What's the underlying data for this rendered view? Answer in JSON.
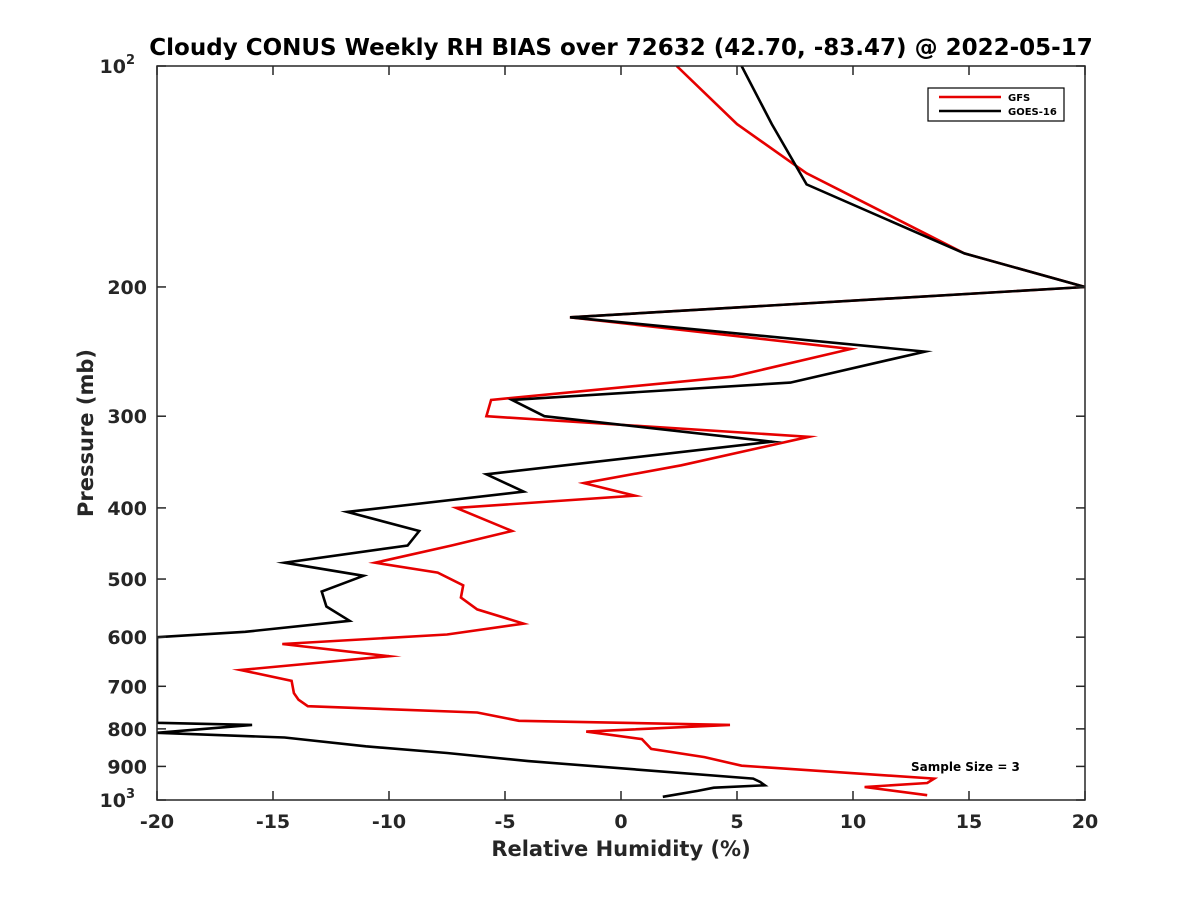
{
  "chart_data": {
    "type": "line",
    "title": "Cloudy CONUS Weekly RH BIAS over 72632 (42.70, -83.47) @ 2022-05-17",
    "xlabel": "Relative Humidity (%)",
    "ylabel": "Pressure (mb)",
    "xlim": [
      -20,
      20
    ],
    "ylim": [
      100,
      1000
    ],
    "y_scale": "log",
    "y_reversed": true,
    "grid": false,
    "legend_position": "top-right",
    "x_ticks": [
      "-20",
      "-15",
      "-10",
      "-5",
      "0",
      "5",
      "10",
      "15",
      "20"
    ],
    "y_ticks": [
      {
        "value": 100,
        "base": "10",
        "exp": "2"
      },
      {
        "value": 200,
        "label": "200"
      },
      {
        "value": 300,
        "label": "300"
      },
      {
        "value": 400,
        "label": "400"
      },
      {
        "value": 500,
        "label": "500"
      },
      {
        "value": 600,
        "label": "600"
      },
      {
        "value": 700,
        "label": "700"
      },
      {
        "value": 800,
        "label": "800"
      },
      {
        "value": 900,
        "label": "900"
      },
      {
        "value": 1000,
        "base": "10",
        "exp": "3"
      }
    ],
    "annotation": "Sample Size = 3",
    "series": [
      {
        "name": "GFS",
        "color": "#e60000",
        "points": [
          [
            2.4,
            100
          ],
          [
            5.0,
            120
          ],
          [
            8.0,
            140
          ],
          [
            14.8,
            180
          ],
          [
            20.0,
            200
          ],
          [
            -2.2,
            220
          ],
          [
            9.9,
            243
          ],
          [
            4.8,
            265
          ],
          [
            -5.6,
            285
          ],
          [
            -5.8,
            300
          ],
          [
            8.1,
            320
          ],
          [
            2.6,
            350
          ],
          [
            -1.6,
            370
          ],
          [
            0.6,
            385
          ],
          [
            -7.1,
            400
          ],
          [
            -4.7,
            430
          ],
          [
            -7.3,
            450
          ],
          [
            -10.6,
            475
          ],
          [
            -7.9,
            490
          ],
          [
            -6.8,
            510
          ],
          [
            -6.9,
            530
          ],
          [
            -6.2,
            550
          ],
          [
            -4.2,
            575
          ],
          [
            -7.5,
            595
          ],
          [
            -14.6,
            613
          ],
          [
            -10.0,
            637
          ],
          [
            -16.4,
            665
          ],
          [
            -14.2,
            688
          ],
          [
            -14.1,
            715
          ],
          [
            -13.9,
            730
          ],
          [
            -13.5,
            745
          ],
          [
            -6.2,
            760
          ],
          [
            -4.4,
            780
          ],
          [
            4.7,
            790
          ],
          [
            -1.5,
            807
          ],
          [
            0.9,
            826
          ],
          [
            1.3,
            852
          ],
          [
            3.6,
            874
          ],
          [
            5.2,
            898
          ],
          [
            13.5,
            935
          ],
          [
            13.2,
            948
          ],
          [
            10.5,
            960
          ],
          [
            13.2,
            985
          ]
        ]
      },
      {
        "name": "GOES-16",
        "color": "#000000",
        "points": [
          [
            5.2,
            100
          ],
          [
            6.5,
            120
          ],
          [
            8.0,
            145
          ],
          [
            14.8,
            180
          ],
          [
            20.0,
            200
          ],
          [
            -2.2,
            220
          ],
          [
            13.1,
            245
          ],
          [
            7.3,
            270
          ],
          [
            -4.7,
            285
          ],
          [
            -3.3,
            300
          ],
          [
            6.5,
            325
          ],
          [
            -5.8,
            360
          ],
          [
            -4.2,
            380
          ],
          [
            -11.8,
            405
          ],
          [
            -8.7,
            430
          ],
          [
            -9.2,
            450
          ],
          [
            -14.5,
            475
          ],
          [
            -11.1,
            495
          ],
          [
            -12.9,
            520
          ],
          [
            -12.7,
            545
          ],
          [
            -11.7,
            570
          ],
          [
            -16.2,
            590
          ],
          [
            -20.0,
            600
          ],
          [
            -20.0,
            785
          ],
          [
            -15.9,
            790
          ],
          [
            -20.0,
            810
          ],
          [
            -14.5,
            822
          ],
          [
            -11.0,
            845
          ],
          [
            -7.5,
            863
          ],
          [
            -4.0,
            885
          ],
          [
            5.7,
            935
          ],
          [
            6.0,
            945
          ],
          [
            6.2,
            955
          ],
          [
            4.0,
            962
          ],
          [
            3.3,
            972
          ],
          [
            1.8,
            990
          ]
        ]
      }
    ]
  }
}
